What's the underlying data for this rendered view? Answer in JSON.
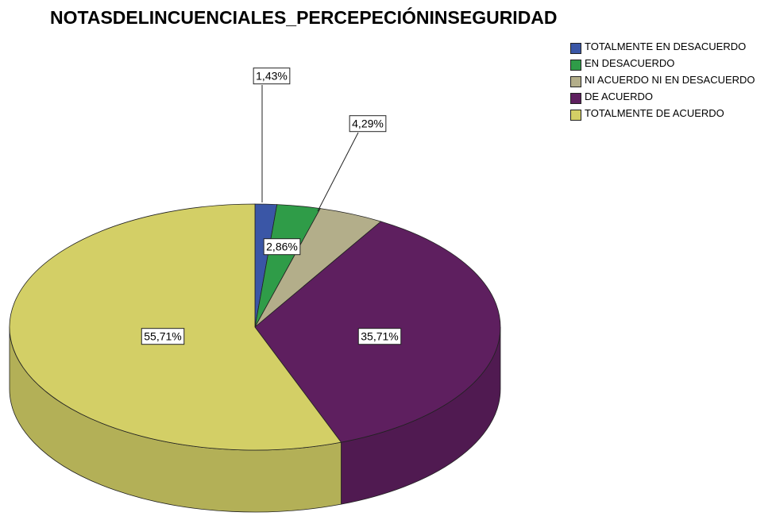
{
  "chart_data": {
    "type": "pie",
    "title": "NOTASDELINCUENCIALES_PERCEPECIÓNINSEGURIDAD",
    "categories": [
      "TOTALMENTE EN DESACUERDO",
      "EN DESACUERDO",
      "NI ACUERDO NI EN DESACUERDO",
      "DE ACUERDO",
      "TOTALMENTE DE ACUERDO"
    ],
    "values": [
      1.43,
      2.86,
      4.29,
      35.71,
      55.71
    ],
    "value_labels": [
      "1,43%",
      "2,86%",
      "4,29%",
      "35,71%",
      "55,71%"
    ],
    "colors": [
      "#3a56a6",
      "#2f9c48",
      "#b3ae8a",
      "#5e1f5f",
      "#d3cf66"
    ],
    "legend": "top-right"
  }
}
